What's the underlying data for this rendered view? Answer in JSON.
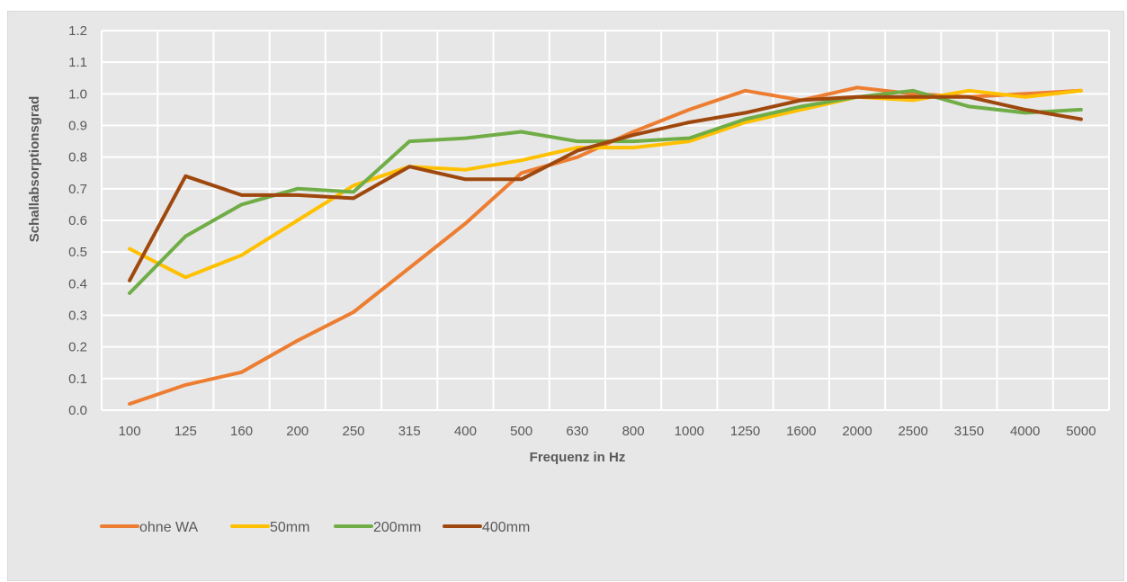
{
  "chart_data": {
    "type": "line",
    "xlabel": "Frequenz in Hz",
    "ylabel": "Schallabsorptionsgrad",
    "ylim": [
      0,
      1.2
    ],
    "yticks": [
      "0.0",
      "0.1",
      "0.2",
      "0.3",
      "0.4",
      "0.5",
      "0.6",
      "0.7",
      "0.8",
      "0.9",
      "1.0",
      "1.1",
      "1.2"
    ],
    "categories": [
      "100",
      "125",
      "160",
      "200",
      "250",
      "315",
      "400",
      "500",
      "630",
      "800",
      "1000",
      "1250",
      "1600",
      "2000",
      "2500",
      "3150",
      "4000",
      "5000"
    ],
    "grid": true,
    "legend_position": "bottom-left",
    "series": [
      {
        "name": "ohne WA",
        "color": "#ed7d31",
        "values": [
          0.02,
          0.08,
          0.12,
          0.22,
          0.31,
          0.45,
          0.59,
          0.75,
          0.8,
          0.88,
          0.95,
          1.01,
          0.98,
          1.02,
          1.0,
          0.99,
          1.0,
          1.01
        ]
      },
      {
        "name": "50mm",
        "color": "#ffc000",
        "values": [
          0.51,
          0.42,
          0.49,
          0.6,
          0.71,
          0.77,
          0.76,
          0.79,
          0.83,
          0.83,
          0.85,
          0.91,
          0.95,
          0.99,
          0.98,
          1.01,
          0.99,
          1.01
        ]
      },
      {
        "name": "200mm",
        "color": "#70ad47",
        "values": [
          0.37,
          0.55,
          0.65,
          0.7,
          0.69,
          0.85,
          0.86,
          0.88,
          0.85,
          0.85,
          0.86,
          0.92,
          0.96,
          0.99,
          1.01,
          0.96,
          0.94,
          0.95
        ]
      },
      {
        "name": "400mm",
        "color": "#9e480e",
        "values": [
          0.41,
          0.74,
          0.68,
          0.68,
          0.67,
          0.77,
          0.73,
          0.73,
          0.82,
          0.87,
          0.91,
          0.94,
          0.98,
          0.99,
          0.99,
          0.99,
          0.95,
          0.92
        ]
      }
    ]
  }
}
